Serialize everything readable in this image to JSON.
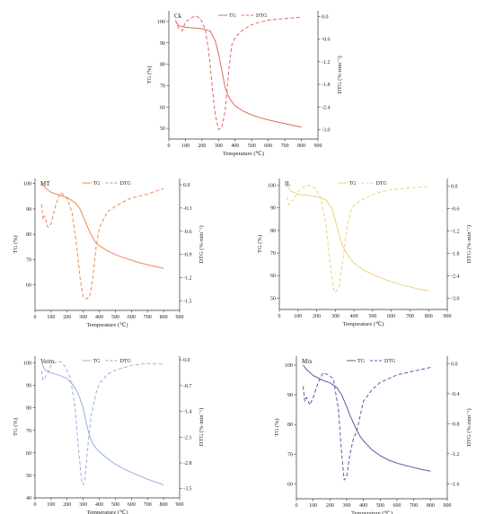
{
  "figure": {
    "panel_count": 5
  },
  "chart_data": [
    {
      "type": "line",
      "title": "Ck",
      "xlabel": "Temperature (℃)",
      "ylabel": "TG (%)",
      "y2label": "DTG (%·min⁻¹)",
      "xlim": [
        0,
        900
      ],
      "ylim": [
        45,
        105
      ],
      "y2lim": [
        -3.25,
        0.15
      ],
      "x_ticks": [
        0,
        100,
        200,
        300,
        400,
        500,
        600,
        700,
        800,
        900
      ],
      "y_ticks": [
        50,
        60,
        70,
        80,
        90,
        100
      ],
      "y2_ticks": [
        0.0,
        -0.6,
        -1.2,
        -1.8,
        -2.4,
        -3.0
      ],
      "legend": {
        "placement": "top-center",
        "entries": [
          "TG",
          "DTG"
        ]
      },
      "color": "#e06a5c",
      "series": [
        {
          "name": "TG",
          "style": "solid",
          "axis": "left",
          "x": [
            40,
            60,
            100,
            150,
            200,
            250,
            280,
            300,
            320,
            340,
            360,
            380,
            400,
            450,
            500,
            550,
            600,
            650,
            700,
            750,
            800
          ],
          "y": [
            100,
            98,
            97.3,
            97,
            96.6,
            95.5,
            91,
            85,
            77,
            69,
            65,
            62.5,
            60.5,
            58,
            56.3,
            55,
            54,
            53,
            52.2,
            51.4,
            50.6
          ]
        },
        {
          "name": "DTG",
          "style": "dashed",
          "axis": "right",
          "x": [
            40,
            60,
            80,
            100,
            130,
            160,
            190,
            220,
            240,
            260,
            280,
            300,
            320,
            340,
            360,
            380,
            400,
            450,
            500,
            550,
            600,
            700,
            800
          ],
          "y": [
            -0.1,
            -0.32,
            -0.38,
            -0.15,
            -0.05,
            0.02,
            -0.05,
            -0.35,
            -0.9,
            -1.8,
            -2.6,
            -3.0,
            -2.95,
            -2.5,
            -1.5,
            -0.75,
            -0.55,
            -0.35,
            -0.22,
            -0.15,
            -0.1,
            -0.06,
            -0.02
          ]
        }
      ]
    },
    {
      "type": "line",
      "title": "MT",
      "xlabel": "Temperature (℃)",
      "ylabel": "TG (%)",
      "y2label": "DTG (%·min⁻¹)",
      "xlim": [
        0,
        900
      ],
      "ylim": [
        50,
        102
      ],
      "y2lim": [
        -1.62,
        0.08
      ],
      "x_ticks": [
        0,
        100,
        200,
        300,
        400,
        500,
        600,
        700,
        800,
        900
      ],
      "y_ticks": [
        60,
        70,
        80,
        90,
        100
      ],
      "y2_ticks": [
        0.0,
        -0.3,
        -0.6,
        -0.9,
        -1.2,
        -1.5
      ],
      "legend": {
        "placement": "top-center",
        "entries": [
          "TG",
          "DTG"
        ]
      },
      "color": "#f0865a",
      "series": [
        {
          "name": "TG",
          "style": "solid",
          "axis": "left",
          "x": [
            40,
            60,
            100,
            150,
            200,
            250,
            280,
            300,
            320,
            340,
            360,
            380,
            400,
            450,
            500,
            550,
            600,
            650,
            700,
            750,
            800
          ],
          "y": [
            100,
            98.5,
            96.5,
            95.5,
            94.5,
            92.5,
            90,
            87,
            84,
            81,
            78.5,
            76.5,
            75.5,
            73.5,
            72,
            70.8,
            69.8,
            68.8,
            68,
            67.3,
            66.6
          ]
        },
        {
          "name": "DTG",
          "style": "dashed",
          "axis": "right",
          "x": [
            40,
            50,
            60,
            80,
            100,
            130,
            160,
            200,
            230,
            260,
            280,
            300,
            320,
            340,
            360,
            380,
            400,
            450,
            500,
            550,
            600,
            700,
            800
          ],
          "y": [
            -0.25,
            -0.45,
            -0.4,
            -0.55,
            -0.5,
            -0.25,
            -0.1,
            -0.18,
            -0.35,
            -0.8,
            -1.2,
            -1.45,
            -1.47,
            -1.45,
            -1.2,
            -0.8,
            -0.55,
            -0.35,
            -0.28,
            -0.22,
            -0.17,
            -0.12,
            -0.05
          ]
        }
      ]
    },
    {
      "type": "line",
      "title": "IL",
      "xlabel": "Temperature (℃)",
      "ylabel": "TG (%)",
      "y2label": "DTG (%·min⁻¹)",
      "xlim": [
        0,
        900
      ],
      "ylim": [
        45,
        103
      ],
      "y2lim": [
        -3.3,
        0.2
      ],
      "x_ticks": [
        0,
        100,
        200,
        300,
        400,
        500,
        600,
        700,
        800,
        900
      ],
      "y_ticks": [
        50,
        60,
        70,
        80,
        90,
        100
      ],
      "y2_ticks": [
        0.0,
        -0.6,
        -1.2,
        -1.8,
        -2.4,
        -3.0
      ],
      "legend": {
        "placement": "top-center",
        "entries": [
          "TG",
          "DTG"
        ]
      },
      "color": "#ecd37a",
      "series": [
        {
          "name": "TG",
          "style": "solid",
          "axis": "left",
          "x": [
            40,
            60,
            100,
            150,
            200,
            250,
            280,
            300,
            320,
            340,
            360,
            380,
            400,
            450,
            500,
            550,
            600,
            650,
            700,
            750,
            800
          ],
          "y": [
            100,
            97.5,
            96,
            95.5,
            95,
            93.5,
            90,
            84.5,
            78,
            73,
            70,
            67.5,
            65.5,
            62.5,
            60.5,
            58.8,
            57.3,
            56,
            55,
            54,
            53.2
          ]
        },
        {
          "name": "DTG",
          "style": "dashed",
          "axis": "right",
          "x": [
            40,
            50,
            60,
            80,
            100,
            130,
            160,
            190,
            220,
            250,
            270,
            290,
            300,
            320,
            340,
            360,
            380,
            400,
            450,
            500,
            550,
            600,
            700,
            800
          ],
          "y": [
            -0.3,
            -0.5,
            -0.45,
            -0.35,
            -0.15,
            -0.02,
            0.02,
            -0.05,
            -0.3,
            -1.0,
            -2.0,
            -2.75,
            -2.85,
            -2.7,
            -2.0,
            -1.2,
            -0.7,
            -0.5,
            -0.35,
            -0.22,
            -0.15,
            -0.1,
            -0.05,
            -0.02
          ]
        }
      ]
    },
    {
      "type": "line",
      "title": "Verm",
      "xlabel": "Temperature (℃)",
      "ylabel": "TG (%)",
      "y2label": "DTG (%·min⁻¹)",
      "xlim": [
        0,
        900
      ],
      "ylim": [
        40,
        103
      ],
      "y2lim": [
        -3.75,
        0.1
      ],
      "x_ticks": [
        0,
        100,
        200,
        300,
        400,
        500,
        600,
        700,
        800,
        900
      ],
      "y_ticks": [
        40,
        50,
        60,
        70,
        80,
        90,
        100
      ],
      "y2_ticks": [
        0.0,
        -0.7,
        -1.4,
        -2.1,
        -2.8,
        -3.5
      ],
      "legend": {
        "placement": "top-center",
        "entries": [
          "TG",
          "DTG"
        ]
      },
      "color": "#9aaee0",
      "series": [
        {
          "name": "TG",
          "style": "solid",
          "axis": "left",
          "x": [
            40,
            60,
            100,
            150,
            200,
            240,
            270,
            300,
            320,
            340,
            360,
            380,
            400,
            450,
            500,
            550,
            600,
            650,
            700,
            750,
            800
          ],
          "y": [
            100,
            97,
            95.5,
            94.5,
            93,
            90,
            86,
            80,
            73,
            67.5,
            64,
            62,
            60.5,
            57.5,
            55,
            53,
            51.3,
            49.8,
            48.3,
            47,
            45.8
          ]
        },
        {
          "name": "DTG",
          "style": "dashed",
          "axis": "right",
          "x": [
            40,
            50,
            60,
            80,
            100,
            130,
            160,
            190,
            220,
            250,
            270,
            290,
            300,
            310,
            330,
            350,
            380,
            400,
            450,
            500,
            600,
            700,
            800
          ],
          "y": [
            -0.3,
            -0.55,
            -0.5,
            -0.35,
            -0.15,
            -0.05,
            -0.05,
            -0.2,
            -0.5,
            -1.3,
            -2.4,
            -3.3,
            -3.4,
            -3.25,
            -2.3,
            -1.5,
            -0.9,
            -0.65,
            -0.4,
            -0.28,
            -0.15,
            -0.1,
            -0.12
          ]
        }
      ]
    },
    {
      "type": "line",
      "title": "Mix",
      "xlabel": "Temperature (℃)",
      "ylabel": "TG (%)",
      "y2label": "DTG (%·min⁻¹)",
      "xlim": [
        0,
        900
      ],
      "ylim": [
        55,
        103
      ],
      "y2lim": [
        -1.8,
        0.1
      ],
      "x_ticks": [
        0,
        100,
        200,
        300,
        400,
        500,
        600,
        700,
        800,
        900
      ],
      "y_ticks": [
        60,
        70,
        80,
        90,
        100
      ],
      "y2_ticks": [
        0.0,
        -0.4,
        -0.8,
        -1.2,
        -1.6
      ],
      "legend": {
        "placement": "top-center",
        "entries": [
          "TG",
          "DTG"
        ]
      },
      "color": "#5a5aa8",
      "series": [
        {
          "name": "TG",
          "style": "solid",
          "axis": "left",
          "x": [
            40,
            60,
            100,
            150,
            200,
            240,
            270,
            300,
            320,
            340,
            360,
            380,
            400,
            450,
            500,
            550,
            600,
            650,
            700,
            750,
            800
          ],
          "y": [
            100,
            98.5,
            96.5,
            95,
            94,
            92.5,
            90,
            86,
            83,
            80.5,
            78,
            76,
            74.5,
            71.5,
            69.5,
            68,
            67,
            66.2,
            65.5,
            64.8,
            64.3
          ]
        },
        {
          "name": "DTG",
          "style": "dashed",
          "axis": "right",
          "x": [
            40,
            50,
            60,
            80,
            100,
            130,
            160,
            190,
            220,
            250,
            270,
            285,
            300,
            320,
            340,
            360,
            380,
            400,
            450,
            500,
            550,
            600,
            700,
            800
          ],
          "y": [
            -0.3,
            -0.5,
            -0.45,
            -0.55,
            -0.45,
            -0.25,
            -0.12,
            -0.15,
            -0.2,
            -0.6,
            -1.2,
            -1.55,
            -1.5,
            -1.2,
            -1.0,
            -0.9,
            -0.7,
            -0.5,
            -0.35,
            -0.25,
            -0.2,
            -0.15,
            -0.1,
            -0.05
          ]
        }
      ]
    }
  ]
}
